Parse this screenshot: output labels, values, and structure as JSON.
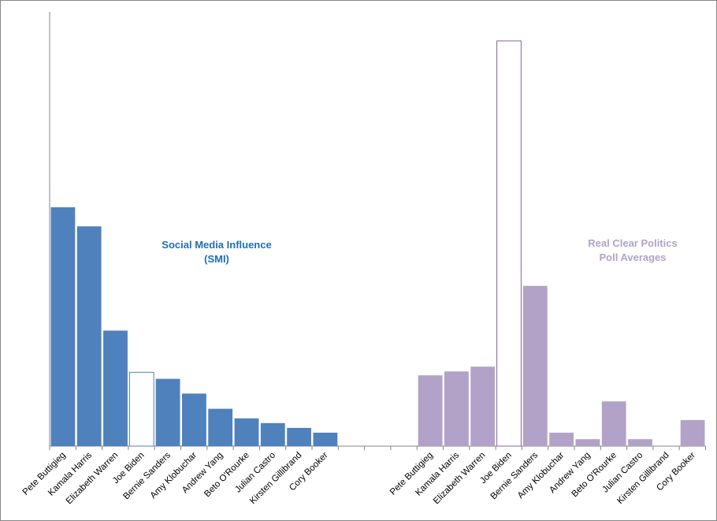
{
  "chart_data": {
    "type": "bar",
    "categories": [
      "Pete Buttigieg",
      "Kamala Harris",
      "Elizabeth Warren",
      "Joe Biden",
      "Bernie Sanders",
      "Amy Klobuchar",
      "Andrew Yang",
      "Beto O'Rourke",
      "Julian Castro",
      "Kirsten Gillibrand",
      "Cory Booker"
    ],
    "ylim": [
      0,
      100
    ],
    "grid": false,
    "legend": "none",
    "series": [
      {
        "name": "Social Media Influence (SMI)",
        "title_lines": [
          "Social Media Influence",
          "(SMI)"
        ],
        "title_color": "#1f6fb4",
        "color": "#4f81bd",
        "highlight_color": "#ffffff",
        "highlight_stroke": "#4f81bd",
        "values": [
          55,
          50.6,
          26.6,
          17,
          15.5,
          12.1,
          8.6,
          6.4,
          5.3,
          4.2,
          3.1
        ]
      },
      {
        "name": "Real Clear Politics Poll Averages",
        "title_lines": [
          "Real Clear Politics",
          "Poll Averages"
        ],
        "title_color": "#b3a2c7",
        "color": "#b3a2c7",
        "highlight_color": "#ffffff",
        "highlight_stroke": "#8064a2",
        "values": [
          16.3,
          17.2,
          18.3,
          93.3,
          36.9,
          3.1,
          1.6,
          10.3,
          1.6,
          0,
          6
        ]
      }
    ],
    "highlight_category": "Joe Biden"
  }
}
